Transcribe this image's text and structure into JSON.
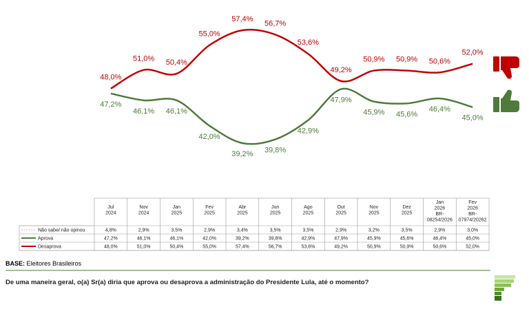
{
  "chart_data": {
    "type": "line",
    "categories": [
      [
        "Jul",
        "2024"
      ],
      [
        "Nov",
        "2024"
      ],
      [
        "Jan",
        "2025"
      ],
      [
        "Fev",
        "2025"
      ],
      [
        "Abr",
        "2025"
      ],
      [
        "Jun",
        "2025"
      ],
      [
        "Ago",
        "2025"
      ],
      [
        "Out",
        "2025"
      ],
      [
        "Nov",
        "2025"
      ],
      [
        "Dez",
        "2025"
      ],
      [
        "Jan",
        "2026",
        "BR-",
        "08254/2026"
      ],
      [
        "Fev",
        "2026",
        "BR-",
        "07974/20262"
      ]
    ],
    "series": [
      {
        "name": "Não sabe/ não opinou",
        "color": "#aaaaaa",
        "line_style": "dashed",
        "plotted": false,
        "values": [
          4.8,
          2.9,
          3.5,
          2.9,
          3.4,
          3.5,
          3.5,
          2.9,
          3.2,
          3.5,
          2.9,
          3.0
        ],
        "value_labels": [
          "4,8%",
          "2,9%",
          "3,5%",
          "2,9%",
          "3,4%",
          "3,5%",
          "3,5%",
          "2,9%",
          "3,2%",
          "3,5%",
          "2,9%",
          "3,0%"
        ]
      },
      {
        "name": "Aprova",
        "color": "#4e7a3a",
        "line_style": "solid",
        "plotted": true,
        "label_side": "below",
        "values": [
          47.2,
          46.1,
          46.1,
          42.0,
          39.2,
          39.8,
          42.9,
          47.9,
          45.9,
          45.6,
          46.4,
          45.0
        ],
        "value_labels": [
          "47,2%",
          "46,1%",
          "46,1%",
          "42,0%",
          "39,2%",
          "39,8%",
          "42,9%",
          "47,9%",
          "45,9%",
          "45,6%",
          "46,4%",
          "45,0%"
        ]
      },
      {
        "name": "Desaprova",
        "color": "#c00000",
        "line_style": "solid",
        "plotted": true,
        "label_side": "above",
        "values": [
          48.0,
          51.0,
          50.4,
          55.0,
          57.4,
          56.7,
          53.6,
          49.2,
          50.9,
          50.9,
          50.6,
          52.0
        ],
        "value_labels": [
          "48,0%",
          "51,0%",
          "50,4%",
          "55,0%",
          "57,4%",
          "56,7%",
          "53,6%",
          "49,2%",
          "50,9%",
          "50,9%",
          "50,6%",
          "52,0%"
        ]
      }
    ]
  },
  "base_label": "BASE:",
  "base": "Eleitores Brasileiros",
  "question": "De uma maneira geral, o(a) Sr(a) diria que aprova ou desaprova a administração do Presidente Lula, até o momento?"
}
